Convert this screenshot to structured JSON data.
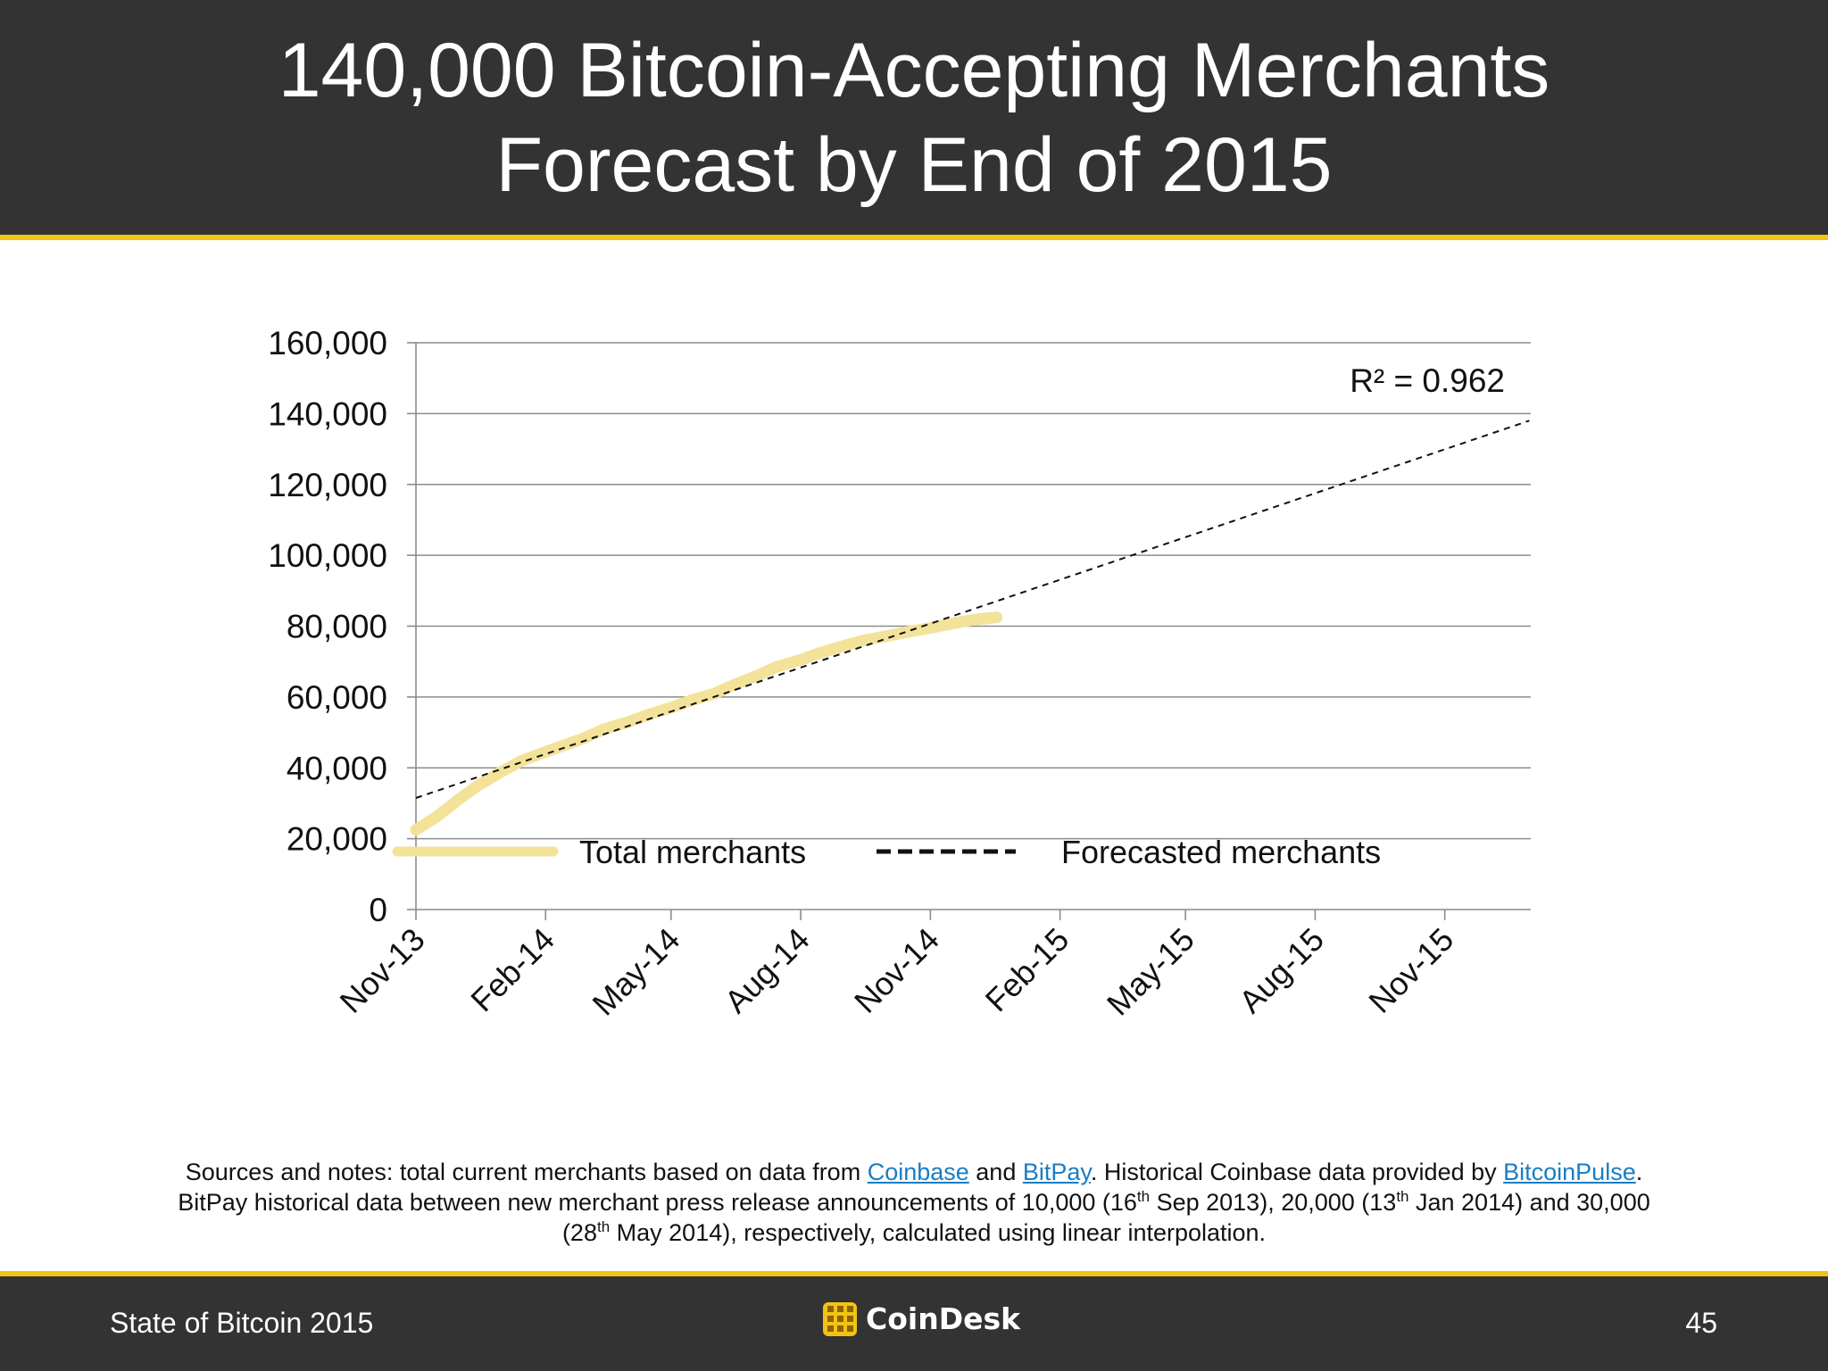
{
  "slide": {
    "title_line1": "140,000 Bitcoin-Accepting Merchants",
    "title_line2": "Forecast by End of 2015",
    "footer_left": "State of Bitcoin 2015",
    "footer_brand": "CoinDesk",
    "page_number": "45",
    "colors": {
      "band": "#333333",
      "accent": "#f2c314",
      "link": "#1a7dc3"
    }
  },
  "notes": {
    "l1_a": "Sources and notes: total current merchants based on data from ",
    "link_coinbase": "Coinbase",
    "l1_b": " and ",
    "link_bitpay": "BitPay",
    "l1_c": ". Historical Coinbase data provided by ",
    "link_bitcoinpulse": "BitcoinPulse",
    "l1_d": ".",
    "l2_a": "BitPay historical data between new merchant press release announcements of 10,000 (16",
    "sup_th": "th",
    "l2_b": " Sep 2013), 20,000 (13",
    "l2_c": " Jan 2014) and 30,000",
    "l3_a": "(28",
    "l3_b": " May 2014), respectively, calculated using linear interpolation."
  },
  "chart_data": {
    "type": "line",
    "title": "",
    "xlabel": "",
    "ylabel": "",
    "x_ticks": [
      "Nov-13",
      "Feb-14",
      "May-14",
      "Aug-14",
      "Nov-14",
      "Feb-15",
      "May-15",
      "Aug-15",
      "Nov-15"
    ],
    "x_range": [
      "Nov-13",
      "Jan-16"
    ],
    "y_ticks": [
      "0",
      "20,000",
      "40,000",
      "60,000",
      "80,000",
      "100,000",
      "120,000",
      "140,000",
      "160,000"
    ],
    "ylim": [
      0,
      160000
    ],
    "grid": "horizontal",
    "legend_position": "bottom",
    "annotation": "R² = 0.962",
    "series": [
      {
        "name": "Total merchants",
        "style": "thick solid line",
        "color": "#f3e39a",
        "points": [
          [
            "2013-11-01",
            22500
          ],
          [
            "2013-11-15",
            26000
          ],
          [
            "2013-12-01",
            31000
          ],
          [
            "2013-12-15",
            35000
          ],
          [
            "2014-01-01",
            39000
          ],
          [
            "2014-01-15",
            42000
          ],
          [
            "2014-02-01",
            44500
          ],
          [
            "2014-02-15",
            46500
          ],
          [
            "2014-03-01",
            48500
          ],
          [
            "2014-03-15",
            51000
          ],
          [
            "2014-04-01",
            53000
          ],
          [
            "2014-04-15",
            55000
          ],
          [
            "2014-05-01",
            57000
          ],
          [
            "2014-05-15",
            59000
          ],
          [
            "2014-06-01",
            61000
          ],
          [
            "2014-06-15",
            63500
          ],
          [
            "2014-07-01",
            66000
          ],
          [
            "2014-07-15",
            68500
          ],
          [
            "2014-08-01",
            70500
          ],
          [
            "2014-08-15",
            72500
          ],
          [
            "2014-09-01",
            74500
          ],
          [
            "2014-09-15",
            76000
          ],
          [
            "2014-10-01",
            77200
          ],
          [
            "2014-10-15",
            78300
          ],
          [
            "2014-11-01",
            79500
          ],
          [
            "2014-11-15",
            80600
          ],
          [
            "2014-12-01",
            81800
          ],
          [
            "2014-12-18",
            82500
          ]
        ]
      },
      {
        "name": "Forecasted merchants",
        "style": "dashed line",
        "color": "#111111",
        "points": [
          [
            "2013-11-01",
            31500
          ],
          [
            "2015-12-31",
            138000
          ]
        ]
      }
    ]
  }
}
